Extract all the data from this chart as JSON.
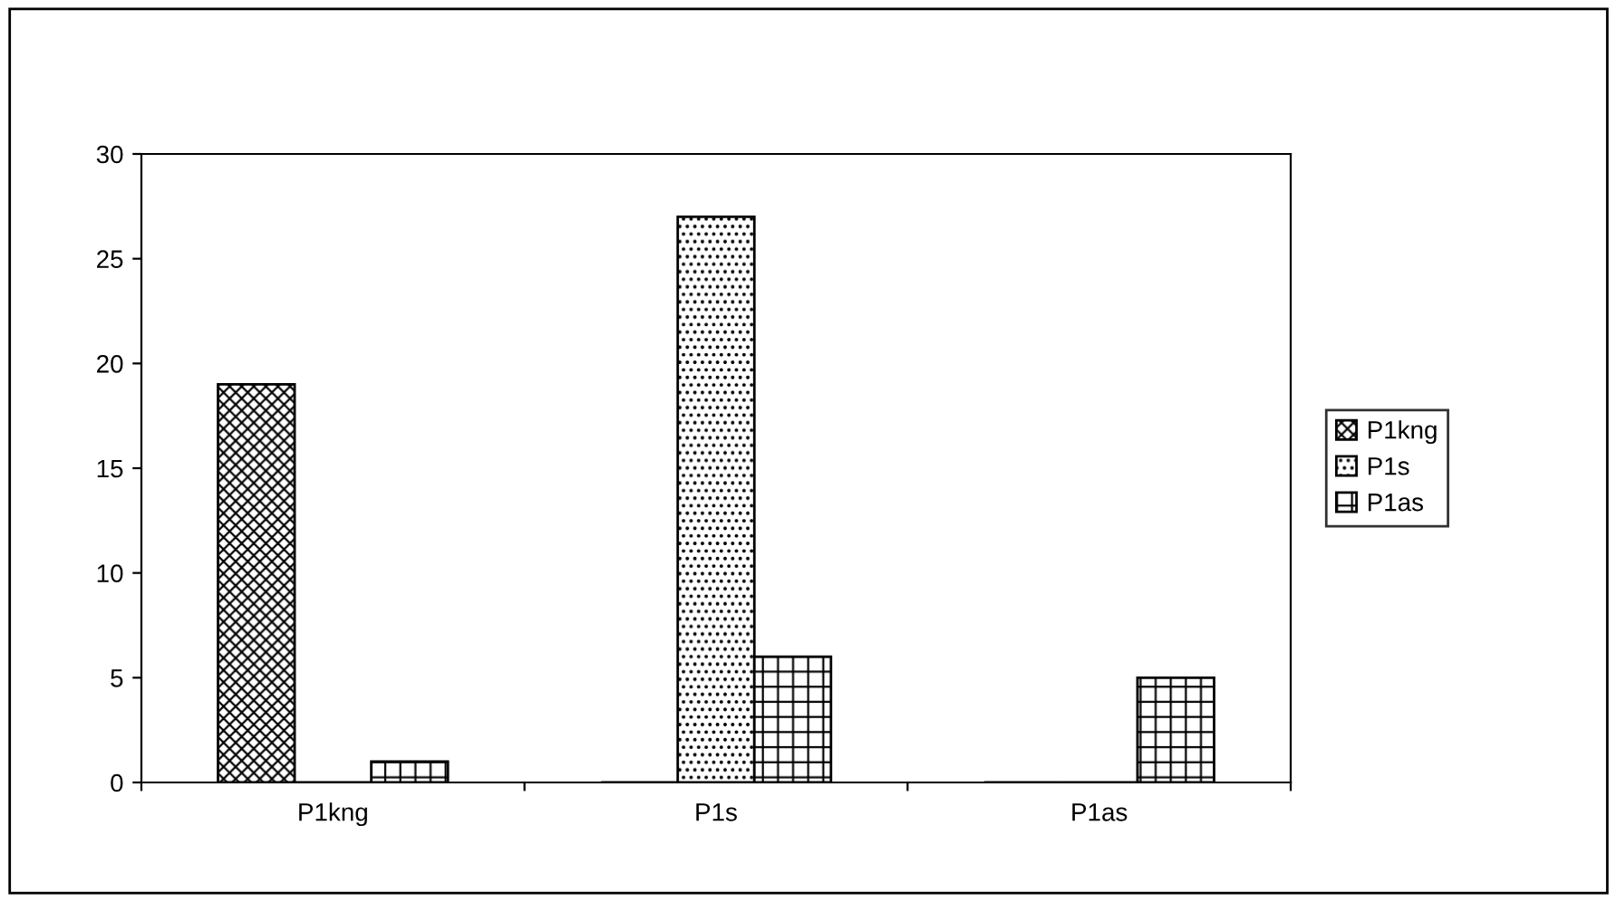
{
  "chart_data": {
    "type": "bar",
    "categories": [
      "P1kng",
      "P1s",
      "P1as"
    ],
    "series": [
      {
        "name": "P1kng",
        "color": "#000000",
        "values": [
          19,
          0,
          0
        ]
      },
      {
        "name": "P1s",
        "color": "#000000",
        "values": [
          0,
          27,
          0
        ]
      },
      {
        "name": "P1as",
        "color": "#000000",
        "values": [
          1,
          6,
          5
        ]
      }
    ],
    "ylim": [
      0,
      30
    ],
    "yticks": [
      0,
      5,
      10,
      15,
      20,
      25,
      30
    ],
    "grid": false,
    "legend": "right"
  }
}
